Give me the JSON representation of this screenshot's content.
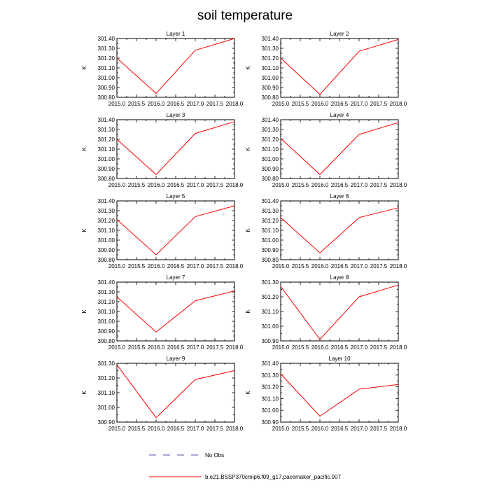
{
  "title": "soil temperature",
  "colors": {
    "model_line": "#ff0000",
    "obs_line": "#5555aa",
    "axis": "#000000"
  },
  "legend": {
    "placement": "bottom-center",
    "items": [
      {
        "label": "No Obs",
        "style": "dashed"
      },
      {
        "label": "b.e21.BSSP370cmip6.f09_g17.pacemaker_pacific.007",
        "style": "solid"
      }
    ]
  },
  "chart_data": [
    {
      "type": "line",
      "title": "Layer 1",
      "ylabel": "K",
      "xlim": [
        2015.0,
        2018.0
      ],
      "ylim": [
        300.8,
        301.4
      ],
      "xticks": [
        "2015.0",
        "2015.5",
        "2016.0",
        "2016.5",
        "2017.0",
        "2017.5",
        "2018.0"
      ],
      "yticks": [
        "300.80",
        "300.90",
        "301.00",
        "301.10",
        "301.20",
        "301.30",
        "301.40"
      ],
      "series": [
        {
          "name": "b.e21.BSSP370cmip6.f09_g17.pacemaker_pacific.007",
          "x": [
            2015,
            2016,
            2017,
            2018
          ],
          "y": [
            301.2,
            300.84,
            301.28,
            301.4
          ]
        }
      ]
    },
    {
      "type": "line",
      "title": "Layer 2",
      "ylabel": "K",
      "xlim": [
        2015.0,
        2018.0
      ],
      "ylim": [
        300.8,
        301.4
      ],
      "xticks": [
        "2015.0",
        "2015.5",
        "2016.0",
        "2016.5",
        "2017.0",
        "2017.5",
        "2018.0"
      ],
      "yticks": [
        "300.80",
        "300.90",
        "301.00",
        "301.10",
        "301.20",
        "301.30",
        "301.40"
      ],
      "series": [
        {
          "name": "b.e21.BSSP370cmip6.f09_g17.pacemaker_pacific.007",
          "x": [
            2015,
            2016,
            2017,
            2018
          ],
          "y": [
            301.2,
            300.83,
            301.27,
            301.39
          ]
        }
      ]
    },
    {
      "type": "line",
      "title": "Layer 3",
      "ylabel": "K",
      "xlim": [
        2015.0,
        2018.0
      ],
      "ylim": [
        300.8,
        301.4
      ],
      "xticks": [
        "2015.0",
        "2015.5",
        "2016.0",
        "2016.5",
        "2017.0",
        "2017.5",
        "2018.0"
      ],
      "yticks": [
        "300.80",
        "300.90",
        "301.00",
        "301.10",
        "301.20",
        "301.30",
        "301.40"
      ],
      "series": [
        {
          "name": "b.e21.BSSP370cmip6.f09_g17.pacemaker_pacific.007",
          "x": [
            2015,
            2016,
            2017,
            2018
          ],
          "y": [
            301.2,
            300.84,
            301.26,
            301.38
          ]
        }
      ]
    },
    {
      "type": "line",
      "title": "Layer 4",
      "ylabel": "K",
      "xlim": [
        2015.0,
        2018.0
      ],
      "ylim": [
        300.8,
        301.4
      ],
      "xticks": [
        "2015.0",
        "2015.5",
        "2016.0",
        "2016.5",
        "2017.0",
        "2017.5",
        "2018.0"
      ],
      "yticks": [
        "300.80",
        "300.90",
        "301.00",
        "301.10",
        "301.20",
        "301.30",
        "301.40"
      ],
      "series": [
        {
          "name": "b.e21.BSSP370cmip6.f09_g17.pacemaker_pacific.007",
          "x": [
            2015,
            2016,
            2017,
            2018
          ],
          "y": [
            301.21,
            300.84,
            301.25,
            301.37
          ]
        }
      ]
    },
    {
      "type": "line",
      "title": "Layer 5",
      "ylabel": "K",
      "xlim": [
        2015.0,
        2018.0
      ],
      "ylim": [
        300.8,
        301.4
      ],
      "xticks": [
        "2015.0",
        "2015.5",
        "2016.0",
        "2016.5",
        "2017.0",
        "2017.5",
        "2018.0"
      ],
      "yticks": [
        "300.80",
        "300.90",
        "301.00",
        "301.10",
        "301.20",
        "301.30",
        "301.40"
      ],
      "series": [
        {
          "name": "b.e21.BSSP370cmip6.f09_g17.pacemaker_pacific.007",
          "x": [
            2015,
            2016,
            2017,
            2018
          ],
          "y": [
            301.21,
            300.85,
            301.24,
            301.35
          ]
        }
      ]
    },
    {
      "type": "line",
      "title": "Layer 6",
      "ylabel": "K",
      "xlim": [
        2015.0,
        2018.0
      ],
      "ylim": [
        300.8,
        301.4
      ],
      "xticks": [
        "2015.0",
        "2015.5",
        "2016.0",
        "2016.5",
        "2017.0",
        "2017.5",
        "2018.0"
      ],
      "yticks": [
        "300.80",
        "300.90",
        "301.00",
        "301.10",
        "301.20",
        "301.30",
        "301.40"
      ],
      "series": [
        {
          "name": "b.e21.BSSP370cmip6.f09_g17.pacemaker_pacific.007",
          "x": [
            2015,
            2016,
            2017,
            2018
          ],
          "y": [
            301.23,
            300.87,
            301.23,
            301.33
          ]
        }
      ]
    },
    {
      "type": "line",
      "title": "Layer 7",
      "ylabel": "K",
      "xlim": [
        2015.0,
        2018.0
      ],
      "ylim": [
        300.8,
        301.4
      ],
      "xticks": [
        "2015.0",
        "2015.5",
        "2016.0",
        "2016.5",
        "2017.0",
        "2017.5",
        "2018.0"
      ],
      "yticks": [
        "300.80",
        "300.90",
        "301.00",
        "301.10",
        "301.20",
        "301.30",
        "301.40"
      ],
      "series": [
        {
          "name": "b.e21.BSSP370cmip6.f09_g17.pacemaker_pacific.007",
          "x": [
            2015,
            2016,
            2017,
            2018
          ],
          "y": [
            301.25,
            300.89,
            301.21,
            301.31
          ]
        }
      ]
    },
    {
      "type": "line",
      "title": "Layer 8",
      "ylabel": "K",
      "xlim": [
        2015.0,
        2018.0
      ],
      "ylim": [
        300.9,
        301.3
      ],
      "xticks": [
        "2015.0",
        "2015.5",
        "2016.0",
        "2016.5",
        "2017.0",
        "2017.5",
        "2018.0"
      ],
      "yticks": [
        "300.90",
        "301.00",
        "301.10",
        "301.20",
        "301.30"
      ],
      "series": [
        {
          "name": "b.e21.BSSP370cmip6.f09_g17.pacemaker_pacific.007",
          "x": [
            2015,
            2016,
            2017,
            2018
          ],
          "y": [
            301.27,
            300.91,
            301.2,
            301.28
          ]
        }
      ]
    },
    {
      "type": "line",
      "title": "Layer 9",
      "ylabel": "K",
      "xlim": [
        2015.0,
        2018.0
      ],
      "ylim": [
        300.9,
        301.3
      ],
      "xticks": [
        "2015.0",
        "2015.5",
        "2016.0",
        "2016.5",
        "2017.0",
        "2017.5",
        "2018.0"
      ],
      "yticks": [
        "300.90",
        "301.00",
        "301.10",
        "301.20",
        "301.30"
      ],
      "series": [
        {
          "name": "b.e21.BSSP370cmip6.f09_g17.pacemaker_pacific.007",
          "x": [
            2015,
            2016,
            2017,
            2018
          ],
          "y": [
            301.29,
            300.93,
            301.19,
            301.25
          ]
        }
      ]
    },
    {
      "type": "line",
      "title": "Layer 10",
      "ylabel": "K",
      "xlim": [
        2015.0,
        2018.0
      ],
      "ylim": [
        300.9,
        301.4
      ],
      "xticks": [
        "2015.0",
        "2015.5",
        "2016.0",
        "2016.5",
        "2017.0",
        "2017.5",
        "2018.0"
      ],
      "yticks": [
        "300.90",
        "301.00",
        "301.10",
        "301.20",
        "301.30",
        "301.40"
      ],
      "series": [
        {
          "name": "b.e21.BSSP370cmip6.f09_g17.pacemaker_pacific.007",
          "x": [
            2015,
            2016,
            2017,
            2018
          ],
          "y": [
            301.31,
            300.95,
            301.18,
            301.22
          ]
        }
      ]
    }
  ]
}
